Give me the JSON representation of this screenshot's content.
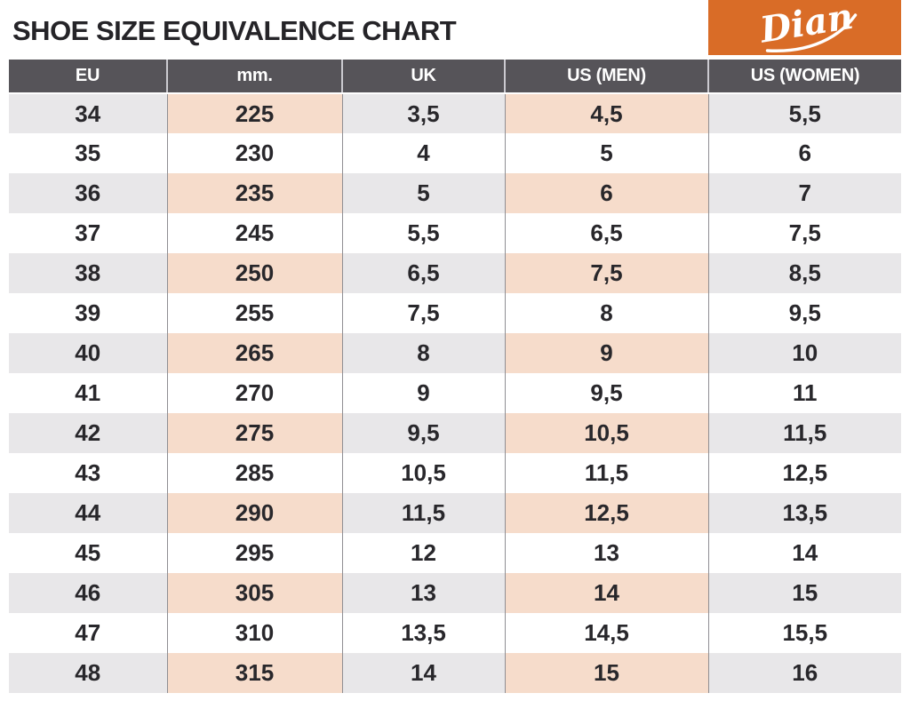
{
  "header": {
    "title": "SHOE SIZE EQUIVALENCE CHART",
    "brand": "Dian"
  },
  "colors": {
    "accent": "#d96c27",
    "header-bg": "#565459",
    "stripe-gray": "#e8e7e9",
    "stripe-pink": "#f6dccb",
    "text": "#28272b",
    "border": "#8f8e93",
    "header-sep": "#cbcad0"
  },
  "chart_data": {
    "type": "table",
    "title": "SHOE SIZE EQUIVALENCE CHART",
    "columns": [
      "EU",
      "mm.",
      "UK",
      "US (MEN)",
      "US (WOMEN)"
    ],
    "rows": [
      [
        "34",
        "225",
        "3,5",
        "4,5",
        "5,5"
      ],
      [
        "35",
        "230",
        "4",
        "5",
        "6"
      ],
      [
        "36",
        "235",
        "5",
        "6",
        "7"
      ],
      [
        "37",
        "245",
        "5,5",
        "6,5",
        "7,5"
      ],
      [
        "38",
        "250",
        "6,5",
        "7,5",
        "8,5"
      ],
      [
        "39",
        "255",
        "7,5",
        "8",
        "9,5"
      ],
      [
        "40",
        "265",
        "8",
        "9",
        "10"
      ],
      [
        "41",
        "270",
        "9",
        "9,5",
        "11"
      ],
      [
        "42",
        "275",
        "9,5",
        "10,5",
        "11,5"
      ],
      [
        "43",
        "285",
        "10,5",
        "11,5",
        "12,5"
      ],
      [
        "44",
        "290",
        "11,5",
        "12,5",
        "13,5"
      ],
      [
        "45",
        "295",
        "12",
        "13",
        "14"
      ],
      [
        "46",
        "305",
        "13",
        "14",
        "15"
      ],
      [
        "47",
        "310",
        "13,5",
        "14,5",
        "15,5"
      ],
      [
        "48",
        "315",
        "14",
        "15",
        "16"
      ]
    ]
  }
}
